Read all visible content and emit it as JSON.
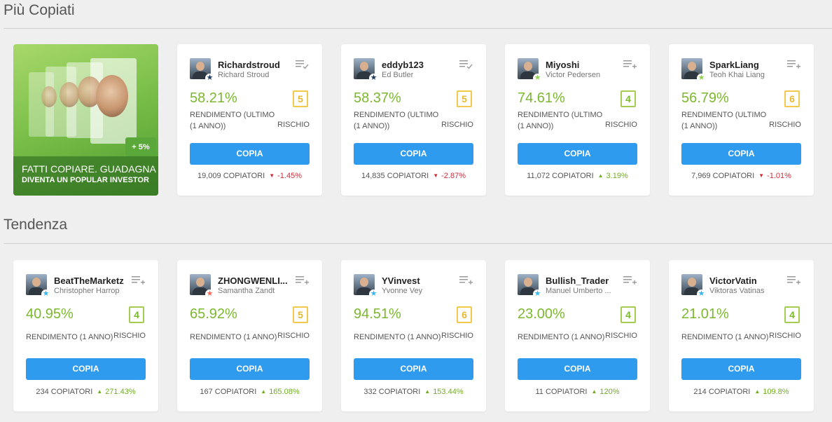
{
  "sections": {
    "most_copied_title": "Più Copiati",
    "trending_title": "Tendenza"
  },
  "banner": {
    "line1": "FATTI COPIARE. GUADAGNA",
    "line2": "DIVENTA UN POPULAR INVESTOR",
    "badge": "+ 5%"
  },
  "common": {
    "copy_label": "COPIA",
    "metric_year": "RENDIMENTO (ULTIMO (1 ANNO))",
    "metric_1y": "RENDIMENTO (1 ANNO)",
    "risk_label": "RISCHIO",
    "copiers_suffix": "COPIATORI"
  },
  "most_copied": [
    {
      "username": "Richardstroud",
      "name": "Richard Stroud",
      "gain": "58.21%",
      "risk": "5",
      "risk_color": "yellow",
      "copiers": "19,009 COPIATORI",
      "change": "-1.45%",
      "dir": "down",
      "star_color": "#1c3a5e",
      "copied": true
    },
    {
      "username": "eddyb123",
      "name": "Ed Butler",
      "gain": "58.37%",
      "risk": "5",
      "risk_color": "yellow",
      "copiers": "14,835 COPIATORI",
      "change": "-2.87%",
      "dir": "down",
      "star_color": "#1c3a5e",
      "copied": true
    },
    {
      "username": "Miyoshi",
      "name": "Victor Pedersen",
      "gain": "74.61%",
      "risk": "4",
      "risk_color": "green",
      "copiers": "11,072 COPIATORI",
      "change": "3.19%",
      "dir": "up",
      "star_color": "#8fd14f",
      "copied": false
    },
    {
      "username": "SparkLiang",
      "name": "Teoh Khai Liang",
      "gain": "56.79%",
      "risk": "6",
      "risk_color": "yellow",
      "copiers": "7,969 COPIATORI",
      "change": "-1.01%",
      "dir": "down",
      "star_color": "#8fd14f",
      "copied": false
    }
  ],
  "trending": [
    {
      "username": "BeatTheMarketz",
      "name": "Christopher Harrop",
      "gain": "40.95%",
      "risk": "4",
      "risk_color": "green",
      "copiers": "234 COPIATORI",
      "change": "271.43%",
      "dir": "up",
      "star_color": "#38b6f0"
    },
    {
      "username": "ZHONGWENLI...",
      "name": "Samantha Zandt",
      "gain": "65.92%",
      "risk": "5",
      "risk_color": "yellow",
      "copiers": "167 COPIATORI",
      "change": "165.08%",
      "dir": "up",
      "star_color": "#f26e5a"
    },
    {
      "username": "YVinvest",
      "name": "Yvonne Vey",
      "gain": "94.51%",
      "risk": "6",
      "risk_color": "yellow",
      "copiers": "332 COPIATORI",
      "change": "153.44%",
      "dir": "up",
      "star_color": "#38b6f0"
    },
    {
      "username": "Bullish_Trader",
      "name": "Manuel Umberto ...",
      "gain": "23.00%",
      "risk": "4",
      "risk_color": "green",
      "copiers": "11 COPIATORI",
      "change": "120%",
      "dir": "up",
      "star_color": "#38b6f0"
    },
    {
      "username": "VictorVatin",
      "name": "Viktoras Vatinas",
      "gain": "21.01%",
      "risk": "4",
      "risk_color": "green",
      "copiers": "214 COPIATORI",
      "change": "109.8%",
      "dir": "up",
      "star_color": "#38b6f0"
    }
  ]
}
